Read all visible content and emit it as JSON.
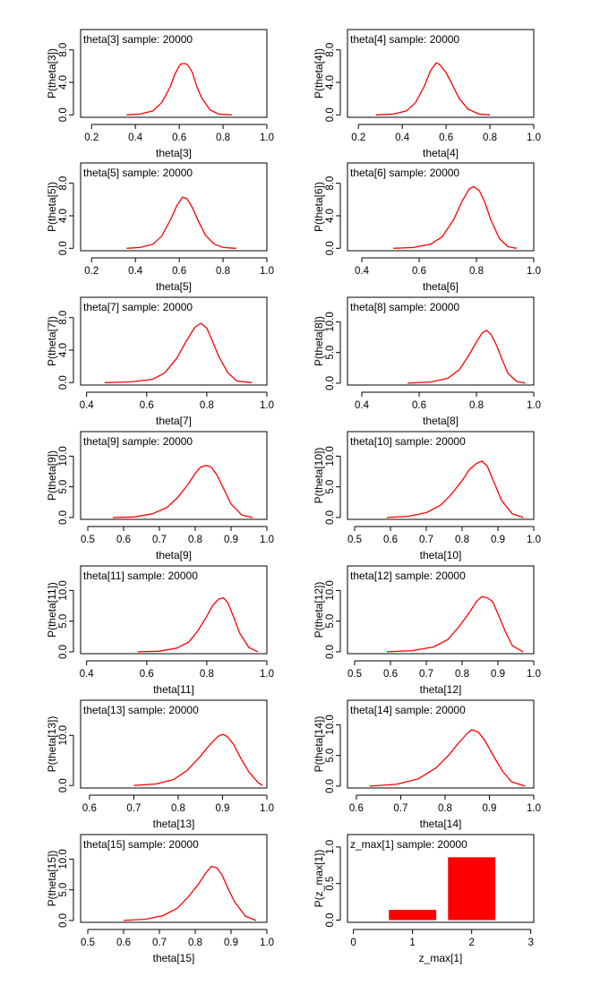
{
  "chart_data": [
    {
      "type": "line",
      "title": "theta[3] sample: 20000",
      "xlabel": "theta[3]",
      "ylabel": "P(theta[3])",
      "xlim": [
        0.15,
        1.0
      ],
      "ylim": [
        -0.3,
        10.5
      ],
      "xticks": [
        "0.2",
        "0.4",
        "0.6",
        "0.8",
        "1.0"
      ],
      "yticks": [
        "0.0",
        "4.0",
        "8.0"
      ],
      "series": [
        {
          "color": "#ff0000",
          "x": [
            0.36,
            0.42,
            0.48,
            0.52,
            0.56,
            0.58,
            0.6,
            0.61,
            0.63,
            0.64,
            0.66,
            0.68,
            0.7,
            0.74,
            0.78,
            0.84
          ],
          "y": [
            0.0,
            0.1,
            0.5,
            1.5,
            3.5,
            5.0,
            6.0,
            6.3,
            6.3,
            6.1,
            5.2,
            3.5,
            2.2,
            0.6,
            0.1,
            0.0
          ]
        }
      ]
    },
    {
      "type": "line",
      "title": "theta[4] sample: 20000",
      "xlabel": "theta[4]",
      "ylabel": "P(theta[4])",
      "xlim": [
        0.15,
        1.0
      ],
      "ylim": [
        -0.3,
        10.5
      ],
      "xticks": [
        "0.2",
        "0.4",
        "0.6",
        "0.8",
        "1.0"
      ],
      "yticks": [
        "0.0",
        "4.0",
        "8.0"
      ],
      "series": [
        {
          "color": "#ff0000",
          "x": [
            0.28,
            0.36,
            0.42,
            0.46,
            0.5,
            0.53,
            0.555,
            0.57,
            0.6,
            0.63,
            0.66,
            0.7,
            0.75,
            0.8
          ],
          "y": [
            0.0,
            0.1,
            0.5,
            1.5,
            3.5,
            5.5,
            6.4,
            6.2,
            5.2,
            3.6,
            2.0,
            0.7,
            0.1,
            0.0
          ]
        }
      ]
    },
    {
      "type": "line",
      "title": "theta[5] sample: 20000",
      "xlabel": "theta[5]",
      "ylabel": "P(theta[5])",
      "xlim": [
        0.15,
        1.0
      ],
      "ylim": [
        -0.3,
        10.5
      ],
      "xticks": [
        "0.2",
        "0.4",
        "0.6",
        "0.8",
        "1.0"
      ],
      "yticks": [
        "0.0",
        "4.0",
        "8.0"
      ],
      "series": [
        {
          "color": "#ff0000",
          "x": [
            0.36,
            0.42,
            0.48,
            0.52,
            0.56,
            0.59,
            0.615,
            0.635,
            0.66,
            0.69,
            0.72,
            0.76,
            0.8,
            0.86
          ],
          "y": [
            0.0,
            0.1,
            0.5,
            1.5,
            3.5,
            5.3,
            6.3,
            6.1,
            5.0,
            3.2,
            1.6,
            0.5,
            0.1,
            0.0
          ]
        }
      ]
    },
    {
      "type": "line",
      "title": "theta[6] sample: 20000",
      "xlabel": "theta[6]",
      "ylabel": "P(theta[6])",
      "xlim": [
        0.35,
        1.0
      ],
      "ylim": [
        -0.3,
        10.5
      ],
      "xticks": [
        "0.4",
        "0.6",
        "0.8",
        "1.0"
      ],
      "yticks": [
        "0.0",
        "4.0",
        "8.0"
      ],
      "series": [
        {
          "color": "#ff0000",
          "x": [
            0.51,
            0.58,
            0.64,
            0.68,
            0.72,
            0.75,
            0.775,
            0.79,
            0.81,
            0.83,
            0.85,
            0.88,
            0.91,
            0.94
          ],
          "y": [
            0.0,
            0.1,
            0.5,
            1.4,
            3.5,
            5.8,
            7.3,
            7.6,
            7.1,
            5.6,
            3.5,
            1.2,
            0.2,
            0.0
          ]
        }
      ]
    },
    {
      "type": "line",
      "title": "theta[7] sample: 20000",
      "xlabel": "theta[7]",
      "ylabel": "P(theta[7])",
      "xlim": [
        0.38,
        1.0
      ],
      "ylim": [
        -0.3,
        10.5
      ],
      "xticks": [
        "0.4",
        "0.6",
        "0.8",
        "1.0"
      ],
      "yticks": [
        "0.0",
        "4.0",
        "8.0"
      ],
      "series": [
        {
          "color": "#ff0000",
          "x": [
            0.46,
            0.55,
            0.62,
            0.66,
            0.7,
            0.73,
            0.76,
            0.78,
            0.8,
            0.82,
            0.84,
            0.87,
            0.9,
            0.95
          ],
          "y": [
            0.0,
            0.1,
            0.4,
            1.2,
            3.0,
            5.0,
            6.8,
            7.3,
            6.7,
            5.0,
            3.2,
            1.2,
            0.2,
            0.0
          ]
        }
      ]
    },
    {
      "type": "line",
      "title": "theta[8] sample: 20000",
      "xlabel": "theta[8]",
      "ylabel": "P(theta[8])",
      "xlim": [
        0.35,
        1.0
      ],
      "ylim": [
        -0.3,
        14.0
      ],
      "xticks": [
        "0.4",
        "0.6",
        "0.8",
        "1.0"
      ],
      "yticks": [
        "0.0",
        "5.0",
        "10.0"
      ],
      "series": [
        {
          "color": "#ff0000",
          "x": [
            0.56,
            0.64,
            0.7,
            0.74,
            0.77,
            0.8,
            0.82,
            0.835,
            0.85,
            0.87,
            0.89,
            0.91,
            0.94,
            0.97
          ],
          "y": [
            0.0,
            0.2,
            0.8,
            2.2,
            4.3,
            6.7,
            8.2,
            8.6,
            8.0,
            6.2,
            3.8,
            1.6,
            0.3,
            0.0
          ]
        }
      ]
    },
    {
      "type": "line",
      "title": "theta[9] sample: 20000",
      "xlabel": "theta[9]",
      "ylabel": "P(theta[9])",
      "xlim": [
        0.48,
        1.0
      ],
      "ylim": [
        -0.3,
        14.0
      ],
      "xticks": [
        "0.5",
        "0.6",
        "0.7",
        "0.8",
        "0.9",
        "1.0"
      ],
      "yticks": [
        "0.0",
        "5.0",
        "10.0"
      ],
      "series": [
        {
          "color": "#ff0000",
          "x": [
            0.57,
            0.63,
            0.68,
            0.72,
            0.75,
            0.78,
            0.8,
            0.815,
            0.83,
            0.845,
            0.86,
            0.88,
            0.9,
            0.93,
            0.96
          ],
          "y": [
            0.0,
            0.1,
            0.6,
            1.6,
            3.2,
            5.4,
            7.2,
            8.2,
            8.5,
            8.2,
            7.0,
            4.6,
            2.2,
            0.4,
            0.0
          ]
        }
      ]
    },
    {
      "type": "line",
      "title": "theta[10] sample: 20000",
      "xlabel": "theta[10]",
      "ylabel": "P(theta[10])",
      "xlim": [
        0.48,
        1.0
      ],
      "ylim": [
        -0.3,
        14.0
      ],
      "xticks": [
        "0.5",
        "0.6",
        "0.7",
        "0.8",
        "0.9",
        "1.0"
      ],
      "yticks": [
        "0.0",
        "5.0",
        "10.0"
      ],
      "series": [
        {
          "color": "#ff0000",
          "x": [
            0.59,
            0.65,
            0.7,
            0.74,
            0.77,
            0.8,
            0.82,
            0.84,
            0.855,
            0.87,
            0.89,
            0.91,
            0.94,
            0.97
          ],
          "y": [
            0.0,
            0.2,
            0.8,
            2.0,
            3.8,
            6.0,
            7.8,
            8.8,
            9.2,
            8.4,
            5.6,
            2.8,
            0.6,
            0.0
          ]
        }
      ]
    },
    {
      "type": "line",
      "title": "theta[11] sample: 20000",
      "xlabel": "theta[11]",
      "ylabel": "P(theta[11])",
      "xlim": [
        0.38,
        1.0
      ],
      "ylim": [
        -0.3,
        14.0
      ],
      "xticks": [
        "0.4",
        "0.6",
        "0.8",
        "1.0"
      ],
      "yticks": [
        "0.0",
        "5.0",
        "10.0"
      ],
      "series": [
        {
          "color": "#ff0000",
          "x": [
            0.57,
            0.64,
            0.7,
            0.74,
            0.77,
            0.8,
            0.82,
            0.84,
            0.855,
            0.87,
            0.89,
            0.91,
            0.94,
            0.97
          ],
          "y": [
            0.0,
            0.1,
            0.6,
            1.6,
            3.4,
            5.8,
            7.6,
            8.6,
            8.8,
            8.0,
            5.6,
            3.0,
            0.7,
            0.0
          ]
        }
      ]
    },
    {
      "type": "line",
      "title": "theta[12] sample: 20000",
      "xlabel": "theta[12]",
      "ylabel": "P(theta[12])",
      "xlim": [
        0.48,
        1.0
      ],
      "ylim": [
        -0.3,
        14.0
      ],
      "xticks": [
        "0.5",
        "0.6",
        "0.7",
        "0.8",
        "0.9",
        "1.0"
      ],
      "yticks": [
        "0.0",
        "5.0",
        "10.0"
      ],
      "series": [
        {
          "color": "#ff0000",
          "x": [
            0.59,
            0.66,
            0.72,
            0.76,
            0.79,
            0.82,
            0.84,
            0.855,
            0.87,
            0.885,
            0.9,
            0.92,
            0.94,
            0.97
          ],
          "y": [
            0.0,
            0.2,
            0.8,
            2.0,
            4.0,
            6.4,
            8.2,
            9.0,
            8.8,
            8.2,
            6.2,
            3.4,
            1.0,
            0.0
          ]
        }
      ]
    },
    {
      "type": "line",
      "title": "theta[13] sample: 20000",
      "xlabel": "theta[13]",
      "ylabel": "P(theta[13])",
      "xlim": [
        0.58,
        1.0
      ],
      "ylim": [
        -0.5,
        17.0
      ],
      "xticks": [
        "0.6",
        "0.7",
        "0.8",
        "0.9",
        "1.0"
      ],
      "yticks": [
        "0.0",
        "10.0"
      ],
      "series": [
        {
          "color": "#ff0000",
          "x": [
            0.7,
            0.75,
            0.79,
            0.82,
            0.85,
            0.87,
            0.89,
            0.9,
            0.91,
            0.925,
            0.94,
            0.96,
            0.98,
            0.99
          ],
          "y": [
            0.0,
            0.3,
            1.2,
            3.0,
            5.8,
            8.0,
            9.8,
            10.2,
            9.8,
            8.2,
            5.6,
            2.6,
            0.6,
            0.0
          ]
        }
      ]
    },
    {
      "type": "line",
      "title": "theta[14] sample: 20000",
      "xlabel": "theta[14]",
      "ylabel": "P(theta[14])",
      "xlim": [
        0.58,
        1.0
      ],
      "ylim": [
        -0.3,
        14.0
      ],
      "xticks": [
        "0.6",
        "0.7",
        "0.8",
        "0.9",
        "1.0"
      ],
      "yticks": [
        "0.0",
        "5.0",
        "10.0"
      ],
      "series": [
        {
          "color": "#ff0000",
          "x": [
            0.63,
            0.69,
            0.74,
            0.78,
            0.81,
            0.83,
            0.85,
            0.86,
            0.875,
            0.89,
            0.91,
            0.93,
            0.95,
            0.98
          ],
          "y": [
            0.0,
            0.3,
            1.2,
            3.0,
            5.2,
            7.0,
            8.6,
            9.2,
            8.8,
            7.4,
            4.8,
            2.4,
            0.7,
            0.0
          ]
        }
      ]
    },
    {
      "type": "line",
      "title": "theta[15] sample: 20000",
      "xlabel": "theta[15]",
      "ylabel": "P(theta[15])",
      "xlim": [
        0.48,
        1.0
      ],
      "ylim": [
        -0.3,
        14.0
      ],
      "xticks": [
        "0.5",
        "0.6",
        "0.7",
        "0.8",
        "0.9",
        "1.0"
      ],
      "yticks": [
        "0.0",
        "5.0",
        "10.0"
      ],
      "series": [
        {
          "color": "#ff0000",
          "x": [
            0.6,
            0.66,
            0.71,
            0.75,
            0.78,
            0.81,
            0.83,
            0.845,
            0.86,
            0.875,
            0.89,
            0.91,
            0.94,
            0.97
          ],
          "y": [
            0.0,
            0.2,
            0.8,
            2.0,
            3.8,
            6.0,
            7.8,
            8.8,
            8.6,
            7.4,
            5.4,
            3.0,
            0.7,
            0.0
          ]
        }
      ]
    },
    {
      "type": "bar",
      "title": "z_max[1] sample: 20000",
      "xlabel": "z_max[1]",
      "ylabel": "P(z_max[1])",
      "xlim": [
        -0.1,
        3.05
      ],
      "ylim": [
        -0.03,
        1.17
      ],
      "xticks": [
        "0",
        "1",
        "2",
        "3"
      ],
      "yticks": [
        "0.0",
        "0.5",
        "1.0"
      ],
      "categories": [
        1,
        2
      ],
      "values": [
        0.14,
        0.86
      ],
      "bar_width": 0.8,
      "color": "#ff0000"
    }
  ]
}
